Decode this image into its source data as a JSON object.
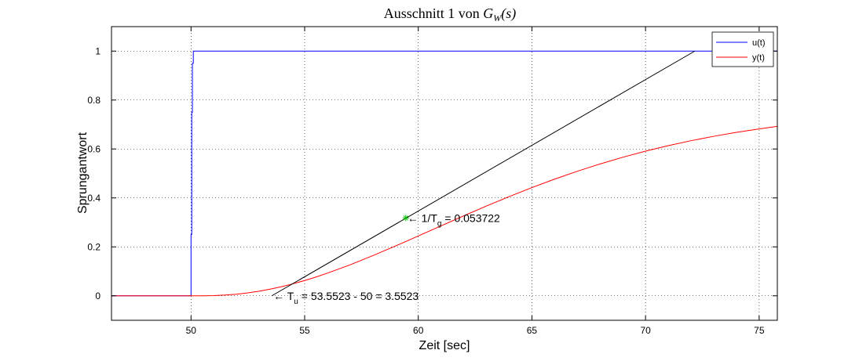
{
  "chart_data": {
    "type": "line",
    "title_prefix": "Ausschnitt 1 von",
    "title_math_main": "G",
    "title_math_sub": "W",
    "title_math_arg": "(s)",
    "xlabel": "Zeit [sec]",
    "ylabel": "Sprungantwort",
    "xlim": [
      46.5,
      75.8
    ],
    "ylim": [
      -0.1,
      1.1
    ],
    "xticks": [
      50,
      55,
      60,
      65,
      70,
      75
    ],
    "yticks": [
      0,
      0.2,
      0.4,
      0.6,
      0.8,
      1
    ],
    "grid": true,
    "legend_position": "top-right",
    "series": [
      {
        "name": "u(t)",
        "color": "#0000ff",
        "x": [
          46.5,
          50.0,
          50.0,
          50.03,
          50.03,
          50.06,
          50.06,
          50.1,
          50.1,
          75.8
        ],
        "y": [
          0,
          0,
          0.25,
          0.25,
          0.75,
          0.75,
          0.95,
          0.95,
          1,
          1
        ]
      },
      {
        "name": "y(t)",
        "color": "#ff0000",
        "x": [
          46.5,
          50,
          50.5,
          51,
          51.5,
          52,
          52.5,
          53,
          53.5,
          54,
          54.5,
          55,
          55.5,
          56,
          57,
          58,
          59,
          59.45,
          60,
          61,
          62,
          63,
          64,
          65,
          66,
          67,
          68,
          69,
          70,
          71,
          72,
          73,
          74,
          75,
          75.8
        ],
        "y": [
          0,
          0,
          0.0001,
          0.0009,
          0.003,
          0.0066,
          0.0119,
          0.0189,
          0.0275,
          0.0377,
          0.0494,
          0.0625,
          0.0769,
          0.0925,
          0.1267,
          0.1641,
          0.2037,
          0.2219,
          0.2446,
          0.2859,
          0.3268,
          0.3669,
          0.4055,
          0.4422,
          0.4767,
          0.509,
          0.5388,
          0.5662,
          0.5911,
          0.6136,
          0.6338,
          0.6518,
          0.6679,
          0.682,
          0.6923
        ]
      },
      {
        "color": "#000000",
        "x": [
          53.5523,
          72.167
        ],
        "y": [
          0,
          1
        ]
      }
    ],
    "markers": [
      {
        "x": 59.45,
        "y": 0.318,
        "color": "#00bb00",
        "symbol": "*"
      }
    ],
    "annotations": [
      {
        "text_main": "← 1/T",
        "text_sub": "g",
        "text_rest": " = 0.053722",
        "x": 59.45,
        "y": 0.318
      },
      {
        "text_main": "← T",
        "text_sub": "u",
        "text_rest": " = 53.5523 - 50 = 3.5523",
        "x": 53.5523,
        "y": 0
      }
    ]
  }
}
